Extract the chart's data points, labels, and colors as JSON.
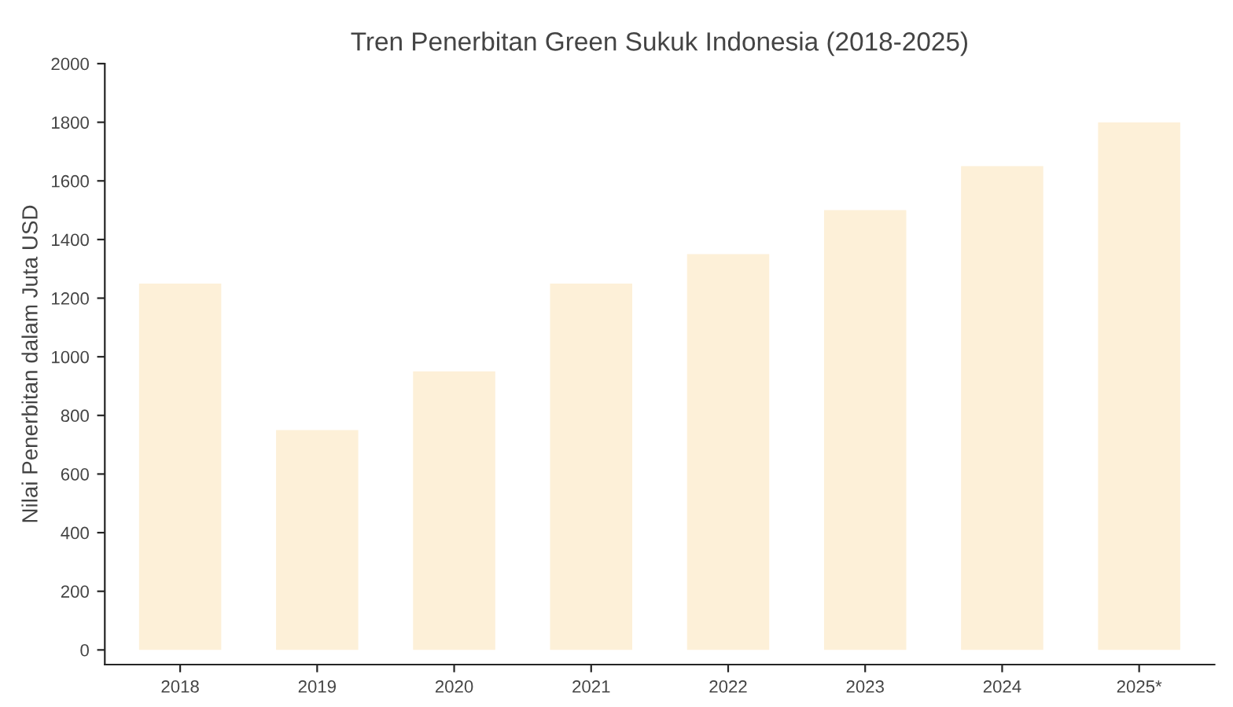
{
  "chart_data": {
    "type": "bar",
    "title": "Tren Penerbitan Green Sukuk Indonesia (2018-2025)",
    "ylabel": "Nilai Penerbitan dalam Juta USD",
    "categories": [
      "2018",
      "2019",
      "2020",
      "2021",
      "2022",
      "2023",
      "2024",
      "2025*"
    ],
    "values": [
      1250,
      750,
      950,
      1250,
      1350,
      1500,
      1650,
      1800
    ],
    "color": "#fdf0d8",
    "ylim": [
      -50,
      2000
    ],
    "yticks": [
      0,
      200,
      400,
      600,
      800,
      1000,
      1200,
      1400,
      1600,
      1800,
      2000
    ],
    "grid": false
  }
}
